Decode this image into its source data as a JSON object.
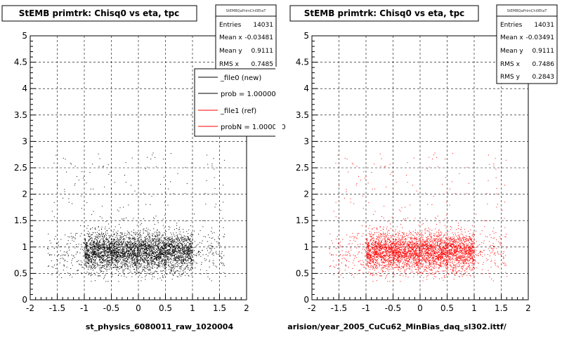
{
  "chart_data": [
    {
      "type": "scatter",
      "title": "StEMB primtrk: Chisq0 vs eta, tpc",
      "xlabel": "st_physics_6080011_raw_1020004",
      "ylabel": "",
      "xlim": [
        -2,
        2
      ],
      "ylim": [
        0,
        5
      ],
      "x_ticks": [
        "-2",
        "-1.5",
        "-1",
        "-0.5",
        "0",
        "0.5",
        "1",
        "1.5",
        "2"
      ],
      "y_ticks": [
        "0",
        "0.5",
        "1",
        "1.5",
        "2",
        "2.5",
        "3",
        "3.5",
        "4",
        "4.5",
        "5"
      ],
      "grid": true,
      "point_color": "#000000",
      "stats": {
        "name": "StEMBQaPrimChi0EtaT",
        "entries_label": "Entries",
        "entries": "14031",
        "mean_x_label": "Mean x",
        "mean_x": "-0.03481",
        "mean_y_label": "Mean y",
        "mean_y": "0.9111",
        "rms_x_label": "RMS x",
        "rms_x": "0.7485"
      },
      "legend": {
        "position": "top-right",
        "entries": [
          {
            "label": "_file0 (new)",
            "color": "#000000"
          },
          {
            "label": "prob = 1.000000",
            "color": "#000000"
          },
          {
            "label": "_file1 (ref)",
            "color": "#ff0000"
          },
          {
            "label": "probN = 1.000000",
            "color": "#ff0000"
          }
        ]
      },
      "distribution": {
        "eta_core": [
          -1.0,
          1.0
        ],
        "eta_tail": [
          -1.7,
          1.6
        ],
        "chisq_mean": 0.9111,
        "chisq_core_spread": 0.18
      }
    },
    {
      "type": "scatter",
      "title": "StEMB primtrk: Chisq0 vs eta, tpc",
      "xlabel": "arision/year_2005_CuCu62_MinBias_daq_sl302.ittf/",
      "ylabel": "",
      "xlim": [
        -2,
        2
      ],
      "ylim": [
        0,
        5
      ],
      "x_ticks": [
        "-2",
        "-1.5",
        "-1",
        "-0.5",
        "0",
        "0.5",
        "1",
        "1.5",
        "2"
      ],
      "y_ticks": [
        "0",
        "0.5",
        "1",
        "1.5",
        "2",
        "2.5",
        "3",
        "3.5",
        "4",
        "4.5",
        "5"
      ],
      "grid": true,
      "point_color": "#ff0000",
      "stats": {
        "name": "StEMBQaPrimChi0EtaT",
        "entries_label": "Entries",
        "entries": "14031",
        "mean_x_label": "Mean x",
        "mean_x": "-0.03491",
        "mean_y_label": "Mean y",
        "mean_y": "0.9111",
        "rms_x_label": "RMS x",
        "rms_x": "0.7486",
        "rms_y_label": "RMS y",
        "rms_y": "0.2843"
      },
      "distribution": {
        "eta_core": [
          -1.0,
          1.0
        ],
        "eta_tail": [
          -1.7,
          1.6
        ],
        "chisq_mean": 0.9111,
        "chisq_core_spread": 0.18
      }
    }
  ]
}
